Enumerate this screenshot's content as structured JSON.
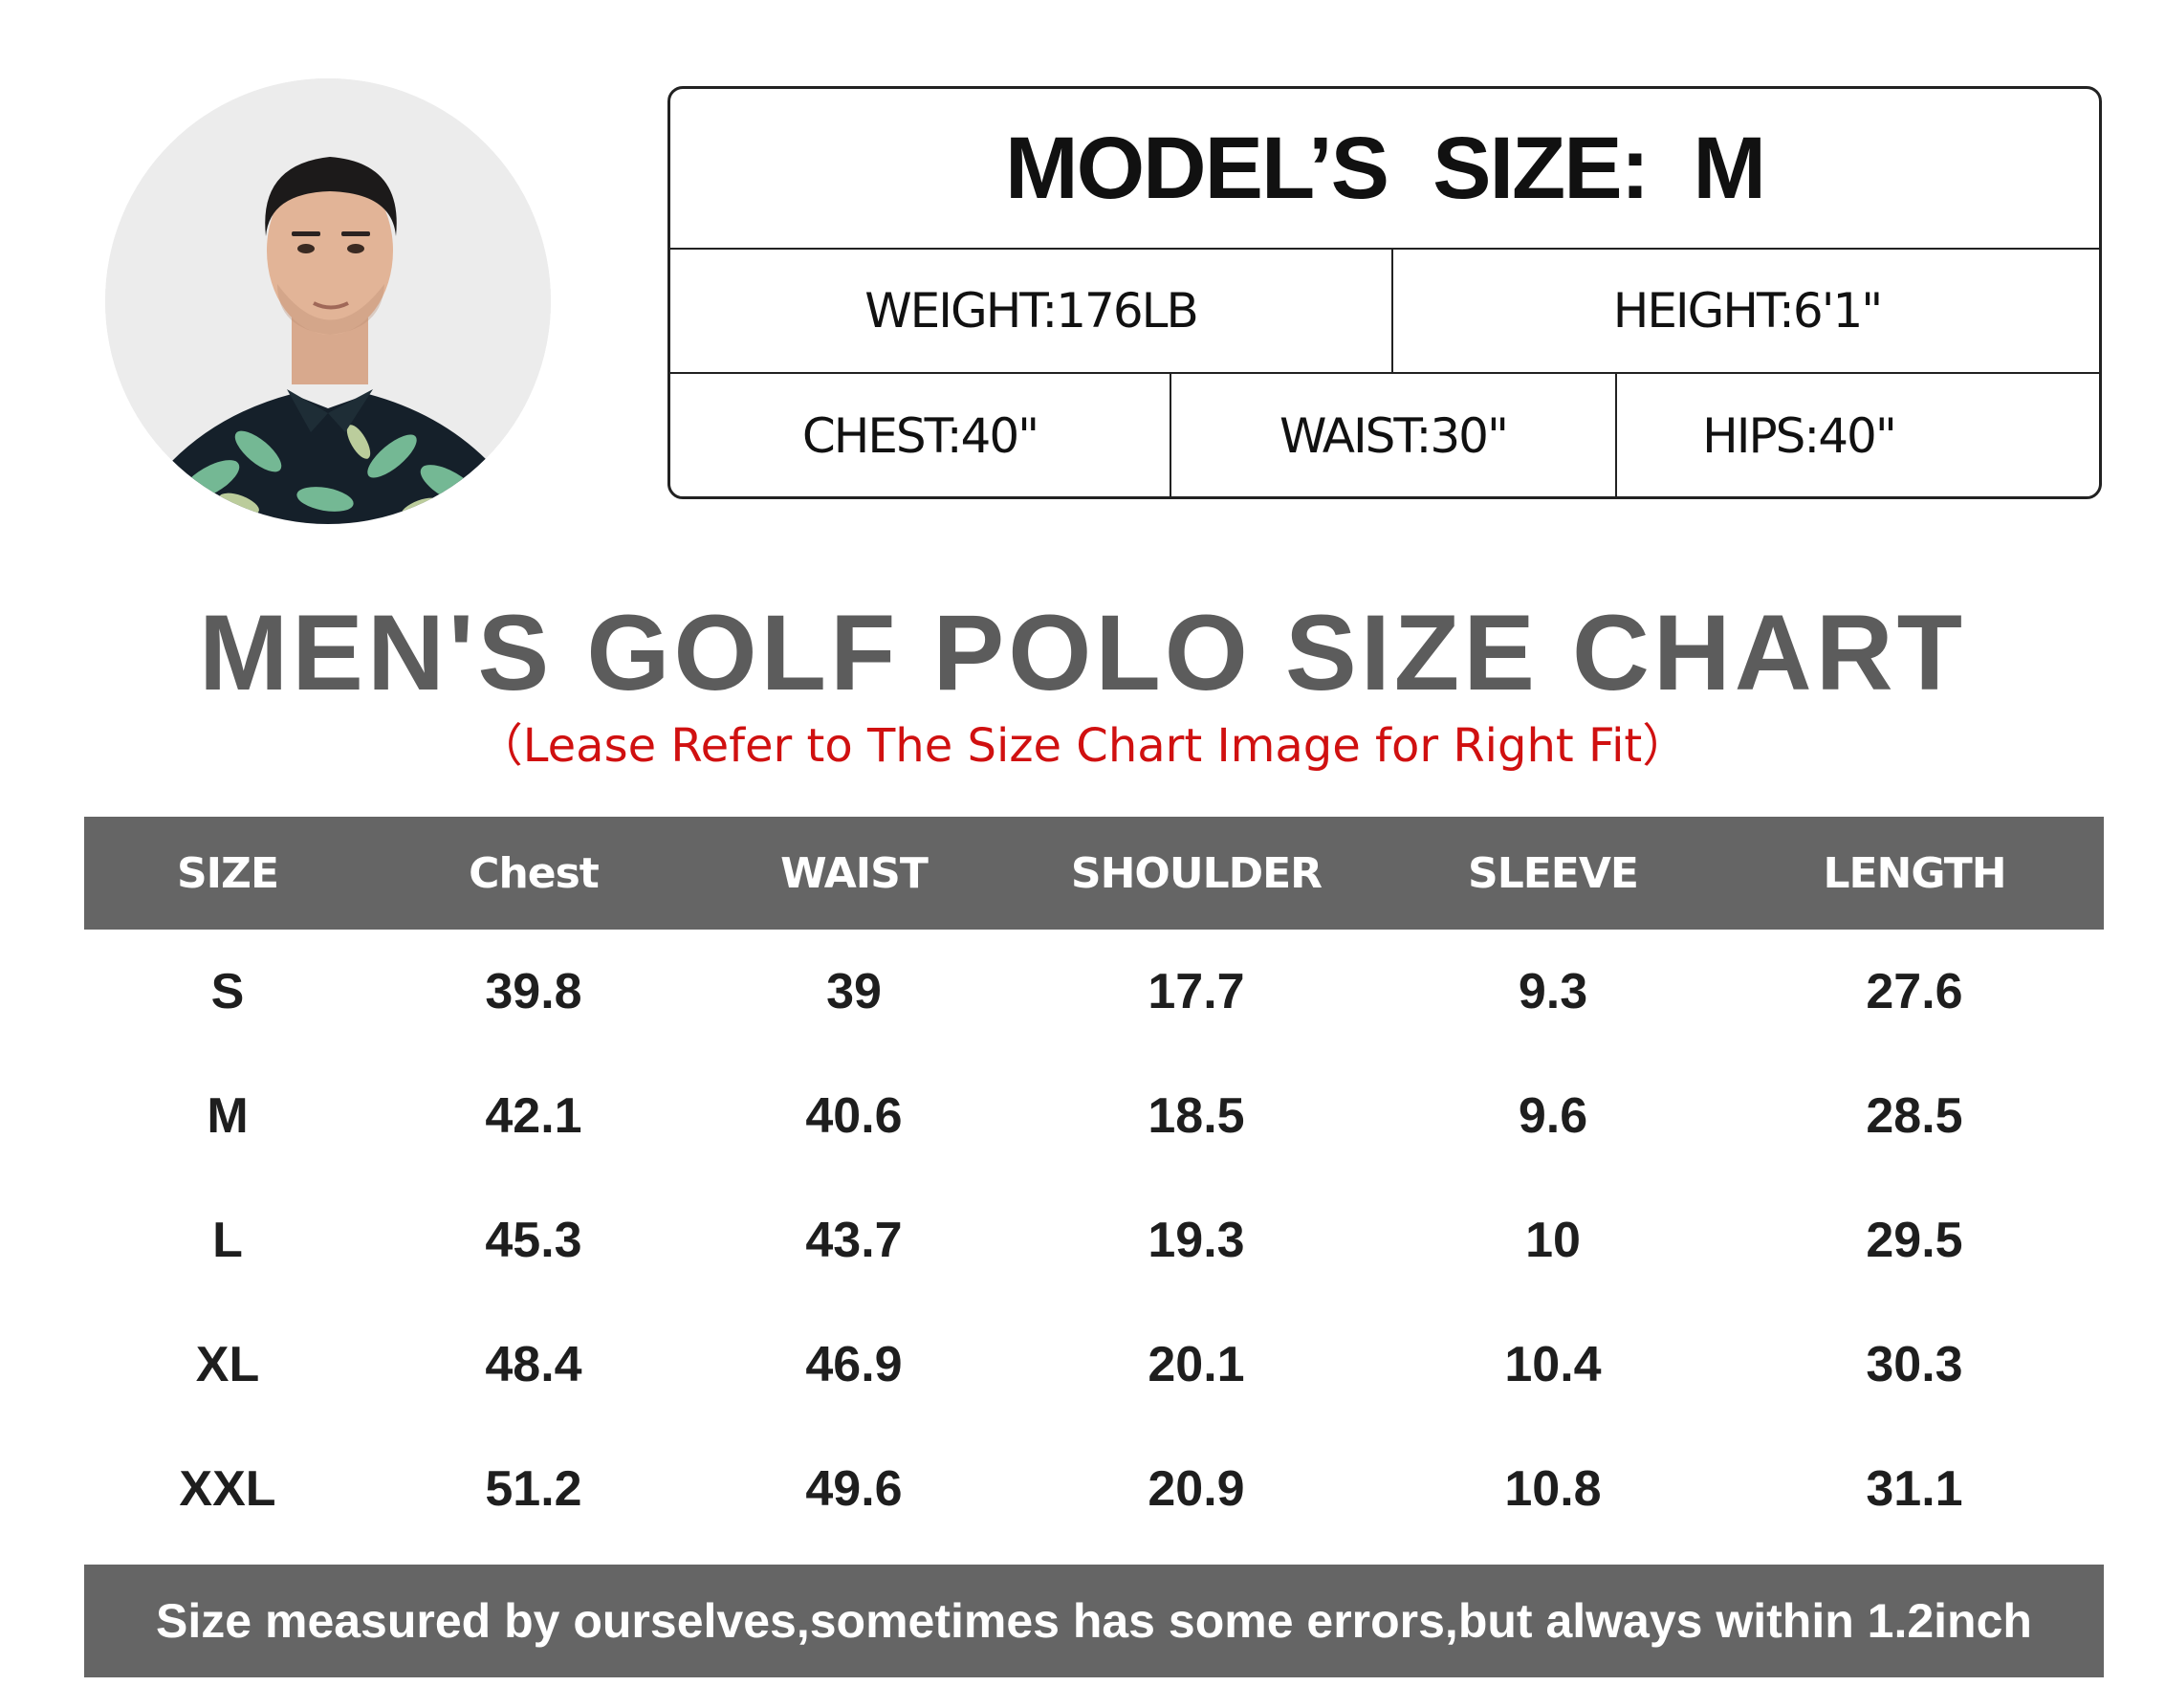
{
  "model": {
    "title": "MODEL’S  SIZE:  M",
    "weight": "WEIGHT:176LB",
    "height": "HEIGHT:6'1\"",
    "chest": "CHEST:40\"",
    "waist": "WAIST:30\"",
    "hips": "HIPS:40\""
  },
  "chart": {
    "title": "MEN'S GOLF POLO SIZE CHART",
    "subtitle": "（Lease Refer to The Size Chart Image for Right Fit）",
    "columns": [
      "SIZE",
      "Chest",
      "WAIST",
      "SHOULDER",
      "SLEEVE",
      "LENGTH"
    ],
    "rows": [
      [
        "S",
        "39.8",
        "39",
        "17.7",
        "9.3",
        "27.6"
      ],
      [
        "M",
        "42.1",
        "40.6",
        "18.5",
        "9.6",
        "28.5"
      ],
      [
        "L",
        "45.3",
        "43.7",
        "19.3",
        "10",
        "29.5"
      ],
      [
        "XL",
        "48.4",
        "46.9",
        "20.1",
        "10.4",
        "30.3"
      ],
      [
        "XXL",
        "51.2",
        "49.6",
        "20.9",
        "10.8",
        "31.1"
      ]
    ],
    "footer": "Size measured by ourselves,sometimes has some errors,but always within 1.2inch"
  },
  "colors": {
    "header_bg": "#656565",
    "title_gray": "#5c5c5c",
    "subtitle_red": "#d01010"
  }
}
